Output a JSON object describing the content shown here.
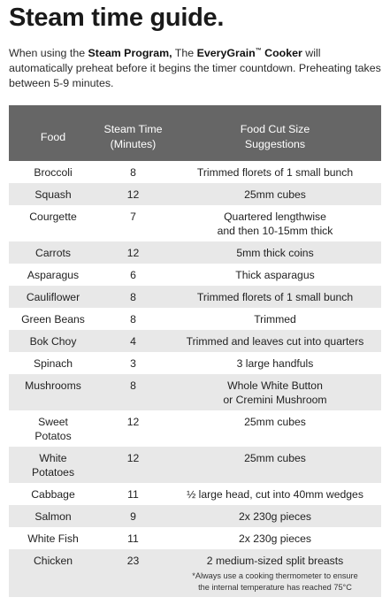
{
  "title": "Steam time guide.",
  "intro": {
    "part1": "When using the ",
    "program": "Steam Program,",
    "part2": " The ",
    "brand": "EveryGrain",
    "tm": "™",
    "brand2": " Cooker",
    "part3": " will automatically preheat before it begins the timer countdown. Preheating takes between 5-9 minutes."
  },
  "table": {
    "headers": {
      "food": "Food",
      "time_line1": "Steam Time",
      "time_line2": "(Minutes)",
      "size_line1": "Food Cut Size",
      "size_line2": "Suggestions"
    },
    "rows": [
      {
        "food_lines": [
          "Broccoli"
        ],
        "time": "8",
        "size_lines": [
          "Trimmed florets of 1 small bunch"
        ]
      },
      {
        "food_lines": [
          "Squash"
        ],
        "time": "12",
        "size_lines": [
          "25mm cubes"
        ]
      },
      {
        "food_lines": [
          "Courgette"
        ],
        "time": "7",
        "size_lines": [
          "Quartered lengthwise",
          "and then 10-15mm thick"
        ]
      },
      {
        "food_lines": [
          "Carrots"
        ],
        "time": "12",
        "size_lines": [
          "5mm thick coins"
        ]
      },
      {
        "food_lines": [
          "Asparagus"
        ],
        "time": "6",
        "size_lines": [
          "Thick asparagus"
        ]
      },
      {
        "food_lines": [
          "Cauliflower"
        ],
        "time": "8",
        "size_lines": [
          "Trimmed florets of 1 small bunch"
        ]
      },
      {
        "food_lines": [
          "Green Beans"
        ],
        "time": "8",
        "size_lines": [
          "Trimmed"
        ]
      },
      {
        "food_lines": [
          "Bok Choy"
        ],
        "time": "4",
        "size_lines": [
          "Trimmed and leaves cut into quarters"
        ]
      },
      {
        "food_lines": [
          "Spinach"
        ],
        "time": "3",
        "size_lines": [
          "3 large handfuls"
        ]
      },
      {
        "food_lines": [
          "Mushrooms"
        ],
        "time": "8",
        "size_lines": [
          "Whole White Button",
          "or Cremini Mushroom"
        ]
      },
      {
        "food_lines": [
          "Sweet",
          "Potatos"
        ],
        "time": "12",
        "size_lines": [
          "25mm cubes"
        ]
      },
      {
        "food_lines": [
          "White",
          "Potatoes"
        ],
        "time": "12",
        "size_lines": [
          "25mm cubes"
        ]
      },
      {
        "food_lines": [
          "Cabbage"
        ],
        "time": "11",
        "size_lines": [
          "½ large head, cut into 40mm wedges"
        ]
      },
      {
        "food_lines": [
          "Salmon"
        ],
        "time": "9",
        "size_lines": [
          "2x 230g pieces"
        ]
      },
      {
        "food_lines": [
          "White Fish"
        ],
        "time": "11",
        "size_lines": [
          "2x 230g pieces"
        ]
      },
      {
        "food_lines": [
          "Chicken"
        ],
        "time": "23",
        "size_lines": [
          "2 medium-sized split breasts"
        ],
        "note_lines": [
          "*Always use a cooking thermometer to ensure",
          "the internal temperature has reached 75°C"
        ]
      }
    ]
  }
}
